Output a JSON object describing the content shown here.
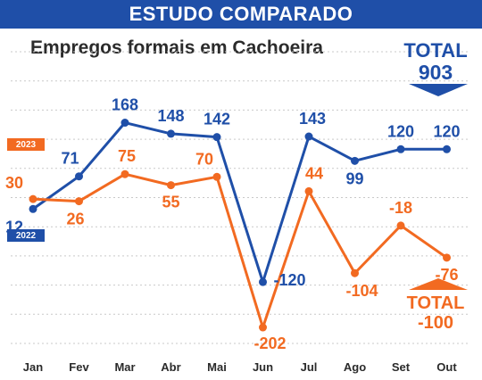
{
  "header": {
    "title": "ESTUDO COMPARADO"
  },
  "chart_data": {
    "type": "line",
    "title": "Empregos formais em Cachoeira",
    "xlabel": "",
    "ylabel": "",
    "categories": [
      "Jan",
      "Fev",
      "Mar",
      "Abr",
      "Mai",
      "Jun",
      "Jul",
      "Ago",
      "Set",
      "Out"
    ],
    "series": [
      {
        "name": "2022",
        "color": "#1f4fa8",
        "values": [
          12,
          71,
          168,
          148,
          142,
          -120,
          143,
          99,
          120,
          120
        ],
        "total_label": "TOTAL",
        "total_value": "903"
      },
      {
        "name": "2023",
        "color": "#f26a21",
        "values": [
          30,
          26,
          75,
          55,
          70,
          -202,
          44,
          -104,
          -18,
          -76
        ],
        "total_label": "TOTAL",
        "total_value": "-100"
      }
    ],
    "ylim": [
      -231,
      293
    ],
    "grid": true,
    "legend": "left"
  }
}
